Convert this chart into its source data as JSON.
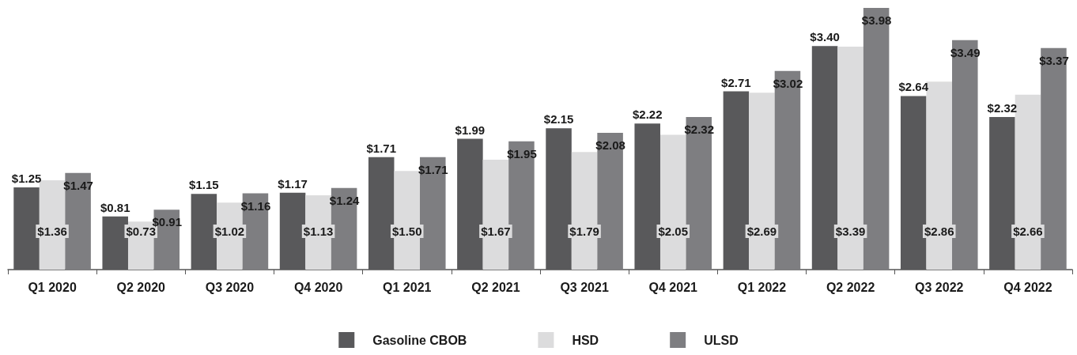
{
  "chart_data": {
    "type": "bar",
    "categories": [
      "Q1 2020",
      "Q2 2020",
      "Q3 2020",
      "Q4 2020",
      "Q1 2021",
      "Q2 2021",
      "Q3 2021",
      "Q4 2021",
      "Q1 2022",
      "Q2 2022",
      "Q3 2022",
      "Q4 2022"
    ],
    "series": [
      {
        "name": "Gasoline CBOB",
        "color": "#59595b",
        "values": [
          1.25,
          0.81,
          1.15,
          1.17,
          1.71,
          1.99,
          2.15,
          2.22,
          2.71,
          3.4,
          2.64,
          2.32
        ],
        "value_labels": [
          "$1.25",
          "$0.81",
          "$1.15",
          "$1.17",
          "$1.71",
          "$1.99",
          "$2.15",
          "$2.22",
          "$2.71",
          "$3.40",
          "$2.64",
          "$2.32"
        ]
      },
      {
        "name": "HSD",
        "color": "#dcdcdd",
        "values": [
          1.36,
          0.73,
          1.02,
          1.13,
          1.5,
          1.67,
          1.79,
          2.05,
          2.69,
          3.39,
          2.86,
          2.66
        ],
        "value_labels": [
          "$1.36",
          "$0.73",
          "$1.02",
          "$1.13",
          "$1.50",
          "$1.67",
          "$1.79",
          "$2.05",
          "$2.69",
          "$3.39",
          "$2.86",
          "$2.66"
        ]
      },
      {
        "name": "ULSD",
        "color": "#7e7e81",
        "values": [
          1.47,
          0.91,
          1.16,
          1.24,
          1.71,
          1.95,
          2.08,
          2.32,
          3.02,
          3.98,
          3.49,
          3.37
        ],
        "value_labels": [
          "$1.47",
          "$0.91",
          "$1.16",
          "$1.24",
          "$1.71",
          "$1.95",
          "$2.08",
          "$2.32",
          "$3.02",
          "$3.98",
          "$3.49",
          "$3.37"
        ]
      }
    ],
    "grid": false,
    "legend": "bottom"
  }
}
